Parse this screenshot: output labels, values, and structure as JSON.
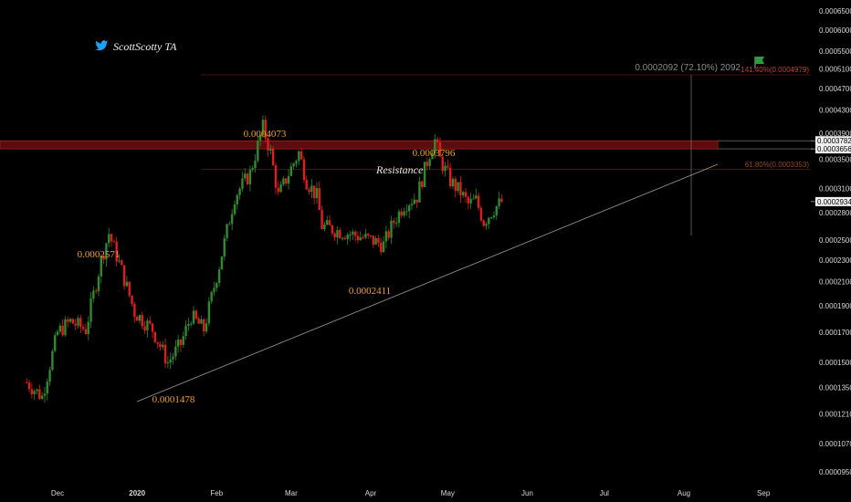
{
  "brand": {
    "handle": "ScottScotty TA",
    "icon": "twitter-bird-icon"
  },
  "colors": {
    "up": "#2e8b2e",
    "down": "#e21c1c",
    "background": "#000000",
    "zone": "#7a1010",
    "fib_high": "#cc3a2a",
    "fib_mid": "#8a4a28",
    "measure": "#8a8a8a"
  },
  "measure_label": "0.0002092 (72.10%) 2092",
  "resistance_label": "Resistance",
  "fib_levels": [
    {
      "label": "141.40%(0.0004979)",
      "price": 0.0004979
    },
    {
      "label": "61.80%(0.0003353)",
      "price": 0.0003353
    }
  ],
  "price_tags": [
    {
      "label": "0.0003782",
      "price": 0.0003782
    },
    {
      "label": "0.0003656",
      "price": 0.0003656
    },
    {
      "label": "0.0002934",
      "price": 0.0002934
    }
  ],
  "chart_data": {
    "type": "candlestick",
    "y_scale": "log",
    "ylim": [
      9e-05,
      0.00068
    ],
    "y_ticks": [
      "0.0006500",
      "0.0006000",
      "0.0005500",
      "0.0005100",
      "0.0004700",
      "0.0004300",
      "0.0003900",
      "0.0003500",
      "0.0003100",
      "0.0002800",
      "0.0002500",
      "0.0002300",
      "0.0002100",
      "0.0001900",
      "0.0001700",
      "0.0001500",
      "0.0001350",
      "0.0001210",
      "0.0001070",
      "0.0000950"
    ],
    "x_ticks": [
      "Dec",
      "2020",
      "Feb",
      "Mar",
      "Apr",
      "May",
      "Jun",
      "Jul",
      "Aug",
      "Sep"
    ],
    "annotations": [
      {
        "text": "0.0002571",
        "price": 0.0002571
      },
      {
        "text": "0.0001478",
        "price": 0.0001478
      },
      {
        "text": "0.0004073",
        "price": 0.0004073
      },
      {
        "text": "0.0002411",
        "price": 0.0002411
      },
      {
        "text": "0.0003796",
        "price": 0.0003796
      }
    ],
    "resistance_zone": [
      0.0003656,
      0.0003782
    ],
    "trendline": {
      "from_price": 0.0001478,
      "to_price": 0.0003656
    },
    "anchors": [
      {
        "date": "2019-11-19",
        "close": 0.000138
      },
      {
        "date": "2019-11-25",
        "close": 0.00013
      },
      {
        "date": "2019-12-01",
        "close": 0.00017
      },
      {
        "date": "2019-12-06",
        "close": 0.000178
      },
      {
        "date": "2019-12-12",
        "close": 0.000172
      },
      {
        "date": "2019-12-18",
        "close": 0.00023
      },
      {
        "date": "2019-12-21",
        "close": 0.000257
      },
      {
        "date": "2019-12-26",
        "close": 0.00022
      },
      {
        "date": "2019-12-31",
        "close": 0.000185
      },
      {
        "date": "2020-01-07",
        "close": 0.000172
      },
      {
        "date": "2020-01-13",
        "close": 0.00015
      },
      {
        "date": "2020-01-18",
        "close": 0.000162
      },
      {
        "date": "2020-01-22",
        "close": 0.000182
      },
      {
        "date": "2020-01-27",
        "close": 0.000172
      },
      {
        "date": "2020-02-02",
        "close": 0.000225
      },
      {
        "date": "2020-02-08",
        "close": 0.0003
      },
      {
        "date": "2020-02-14",
        "close": 0.00033
      },
      {
        "date": "2020-02-19",
        "close": 0.0004
      },
      {
        "date": "2020-02-22",
        "close": 0.00036
      },
      {
        "date": "2020-02-25",
        "close": 0.0003
      },
      {
        "date": "2020-02-29",
        "close": 0.00033
      },
      {
        "date": "2020-03-04",
        "close": 0.00036
      },
      {
        "date": "2020-03-07",
        "close": 0.00032
      },
      {
        "date": "2020-03-11",
        "close": 0.0003
      },
      {
        "date": "2020-03-13",
        "close": 0.000265
      },
      {
        "date": "2020-03-19",
        "close": 0.00026
      },
      {
        "date": "2020-03-26",
        "close": 0.000255
      },
      {
        "date": "2020-04-01",
        "close": 0.00025
      },
      {
        "date": "2020-04-06",
        "close": 0.000245
      },
      {
        "date": "2020-04-10",
        "close": 0.00027
      },
      {
        "date": "2020-04-14",
        "close": 0.00029
      },
      {
        "date": "2020-04-19",
        "close": 0.0003
      },
      {
        "date": "2020-04-24",
        "close": 0.00036
      },
      {
        "date": "2020-04-26",
        "close": 0.000379
      },
      {
        "date": "2020-04-28",
        "close": 0.00035
      },
      {
        "date": "2020-05-02",
        "close": 0.00032
      },
      {
        "date": "2020-05-06",
        "close": 0.000305
      },
      {
        "date": "2020-05-09",
        "close": 0.00029
      },
      {
        "date": "2020-05-12",
        "close": 0.000295
      },
      {
        "date": "2020-05-15",
        "close": 0.00027
      },
      {
        "date": "2020-05-19",
        "close": 0.000285
      },
      {
        "date": "2020-05-22",
        "close": 0.000293
      }
    ]
  }
}
